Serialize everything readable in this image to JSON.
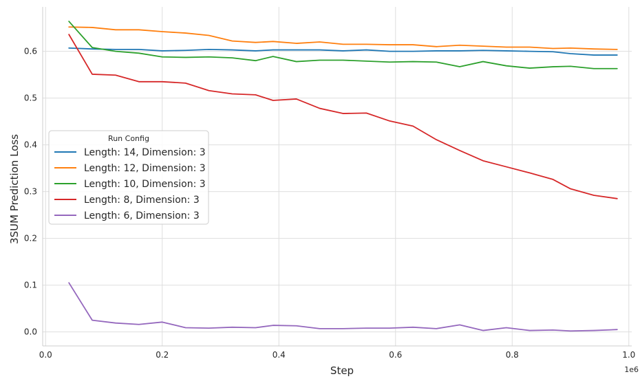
{
  "chart_data": {
    "type": "line",
    "xlabel": "Step",
    "ylabel": "3SUM Prediction Loss",
    "x_offset_label": "1e6",
    "xlim": [
      -0.005,
      1.005
    ],
    "ylim": [
      -0.03,
      0.695
    ],
    "x_ticks": [
      0.0,
      0.2,
      0.4,
      0.6,
      0.8,
      1.0
    ],
    "x_tick_labels": [
      "0.0",
      "0.2",
      "0.4",
      "0.6",
      "0.8",
      "1.0"
    ],
    "y_ticks": [
      0.0,
      0.1,
      0.2,
      0.3,
      0.4,
      0.5,
      0.6
    ],
    "y_tick_labels": [
      "0.0",
      "0.1",
      "0.2",
      "0.3",
      "0.4",
      "0.5",
      "0.6"
    ],
    "grid": true,
    "legend": {
      "title": "Run Config",
      "placement": "center-left"
    },
    "x": [
      0.04,
      0.08,
      0.12,
      0.16,
      0.2,
      0.24,
      0.28,
      0.32,
      0.36,
      0.39,
      0.43,
      0.47,
      0.51,
      0.55,
      0.59,
      0.63,
      0.67,
      0.71,
      0.75,
      0.79,
      0.83,
      0.87,
      0.9,
      0.94,
      0.98
    ],
    "series": [
      {
        "name": "Length: 14, Dimension: 3",
        "color": "#1f77b4",
        "values": [
          0.607,
          0.605,
          0.604,
          0.604,
          0.601,
          0.602,
          0.604,
          0.603,
          0.601,
          0.603,
          0.603,
          0.603,
          0.601,
          0.603,
          0.6,
          0.6,
          0.601,
          0.601,
          0.602,
          0.601,
          0.6,
          0.599,
          0.595,
          0.592,
          0.592
        ]
      },
      {
        "name": "Length: 12, Dimension: 3",
        "color": "#ff7f0e",
        "values": [
          0.652,
          0.651,
          0.646,
          0.646,
          0.642,
          0.639,
          0.634,
          0.622,
          0.619,
          0.621,
          0.617,
          0.62,
          0.615,
          0.615,
          0.614,
          0.614,
          0.61,
          0.613,
          0.611,
          0.609,
          0.609,
          0.606,
          0.607,
          0.605,
          0.604
        ]
      },
      {
        "name": "Length: 10, Dimension: 3",
        "color": "#2ca02c",
        "values": [
          0.664,
          0.608,
          0.6,
          0.596,
          0.588,
          0.587,
          0.588,
          0.586,
          0.58,
          0.589,
          0.578,
          0.581,
          0.581,
          0.579,
          0.577,
          0.578,
          0.577,
          0.567,
          0.578,
          0.569,
          0.564,
          0.567,
          0.568,
          0.563,
          0.563
        ]
      },
      {
        "name": "Length: 8, Dimension: 3",
        "color": "#d62728",
        "values": [
          0.636,
          0.551,
          0.549,
          0.535,
          0.535,
          0.532,
          0.516,
          0.509,
          0.507,
          0.495,
          0.498,
          0.478,
          0.467,
          0.468,
          0.451,
          0.44,
          0.411,
          0.388,
          0.366,
          0.353,
          0.34,
          0.326,
          0.306,
          0.292,
          0.285
        ]
      },
      {
        "name": "Length: 6, Dimension: 3",
        "color": "#9467bd",
        "values": [
          0.105,
          0.025,
          0.019,
          0.016,
          0.021,
          0.009,
          0.008,
          0.01,
          0.009,
          0.014,
          0.013,
          0.007,
          0.007,
          0.008,
          0.008,
          0.01,
          0.007,
          0.015,
          0.003,
          0.009,
          0.003,
          0.004,
          0.002,
          0.003,
          0.005
        ]
      }
    ]
  }
}
